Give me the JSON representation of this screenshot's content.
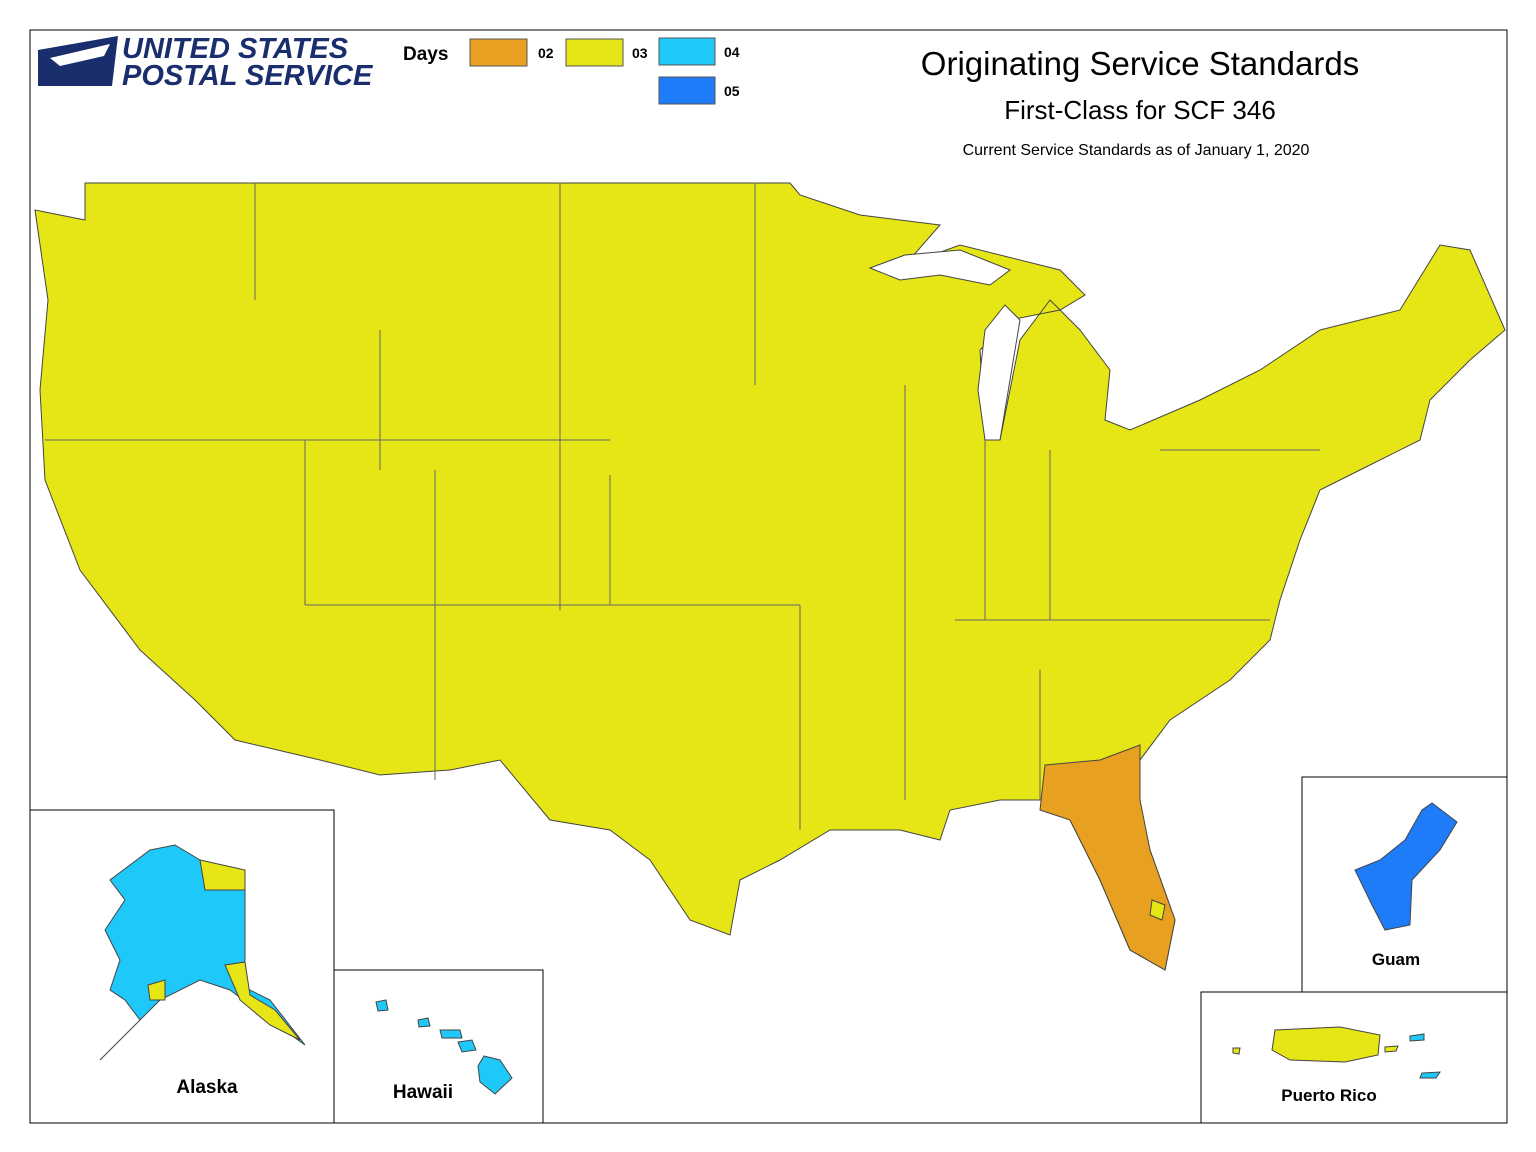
{
  "logo": {
    "line1": "UNITED STATES",
    "line2": "POSTAL SERVICE"
  },
  "legend": {
    "title": "Days",
    "items": [
      {
        "label": "02",
        "color": "#e8a020"
      },
      {
        "label": "03",
        "color": "#e6e617"
      },
      {
        "label": "04",
        "color": "#1ec8f8"
      },
      {
        "label": "05",
        "color": "#1e7cf8"
      }
    ]
  },
  "header": {
    "title": "Originating Service Standards",
    "subtitle": "First-Class for SCF 346",
    "note": "Current Service Standards as of January 1, 2020"
  },
  "insets": {
    "alaska": "Alaska",
    "hawaii": "Hawaii",
    "guam": "Guam",
    "puerto_rico": "Puerto Rico"
  }
}
